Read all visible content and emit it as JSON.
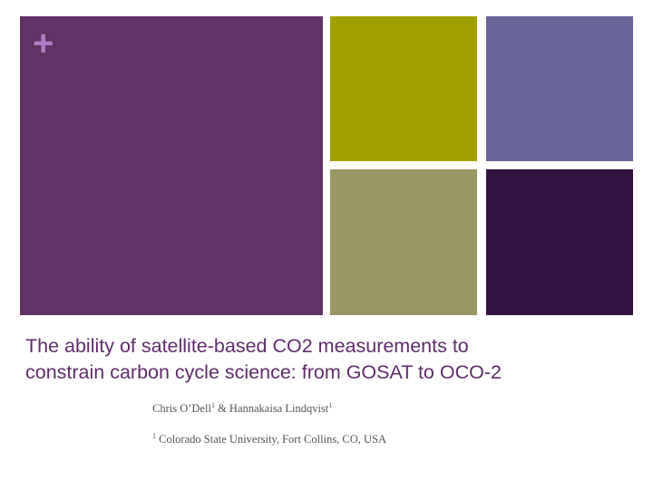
{
  "slide": {
    "symbol": "+",
    "title_lines": [
      "The ability of satellite-based CO2 measurements to",
      "constrain carbon cycle science: from GOSAT to OCO-2"
    ],
    "authors": [
      {
        "name": "Chris O’Dell",
        "mark": "1"
      },
      {
        "name": "Hannakaisa Lindqvist",
        "mark": "1"
      }
    ],
    "author_separator": "&",
    "affiliation": {
      "mark": "1",
      "text": "Colorado State University, Fort Collins, CO, USA"
    }
  }
}
